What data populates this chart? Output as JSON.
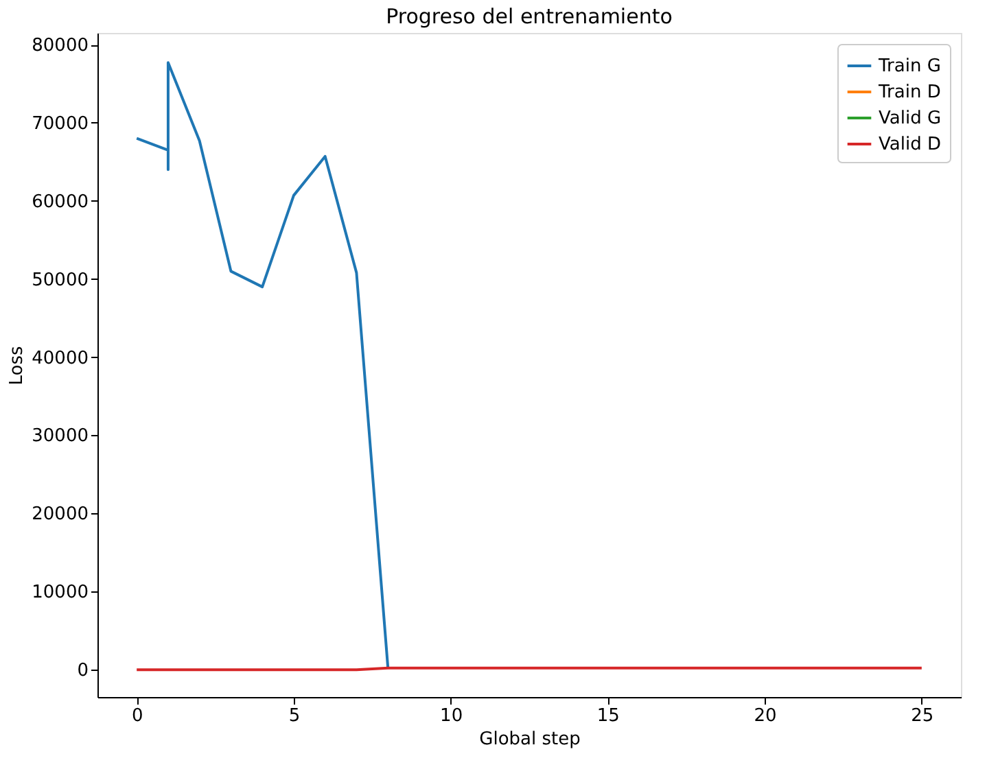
{
  "chart_data": {
    "type": "line",
    "title": "Progreso del entrenamiento",
    "xlabel": "Global step",
    "ylabel": "Loss",
    "xlim": [
      -1.25,
      26.25
    ],
    "xticks": [
      0,
      5,
      10,
      15,
      20,
      25
    ],
    "ylim": [
      -3500,
      81500
    ],
    "yticks": [
      0,
      10000,
      20000,
      30000,
      40000,
      50000,
      60000,
      70000,
      80000
    ],
    "grid": false,
    "legend": "top right",
    "line_style": "solid",
    "marker": "none",
    "series": [
      {
        "name": "Train G",
        "color": "#1f77b4",
        "x": [
          0,
          1,
          1,
          1,
          2,
          3,
          4,
          5,
          6,
          7,
          8
        ],
        "values": [
          68000,
          66500,
          64000,
          77700,
          67700,
          51000,
          49000,
          60700,
          65700,
          50800,
          300
        ]
      },
      {
        "name": "Train D",
        "color": "#ff7f0e"
      },
      {
        "name": "Valid G",
        "color": "#2ca02c"
      },
      {
        "name": "Valid D",
        "color": "#d62728",
        "x": [
          0,
          7,
          8,
          25
        ],
        "values": [
          0,
          0,
          200,
          200
        ]
      }
    ]
  }
}
